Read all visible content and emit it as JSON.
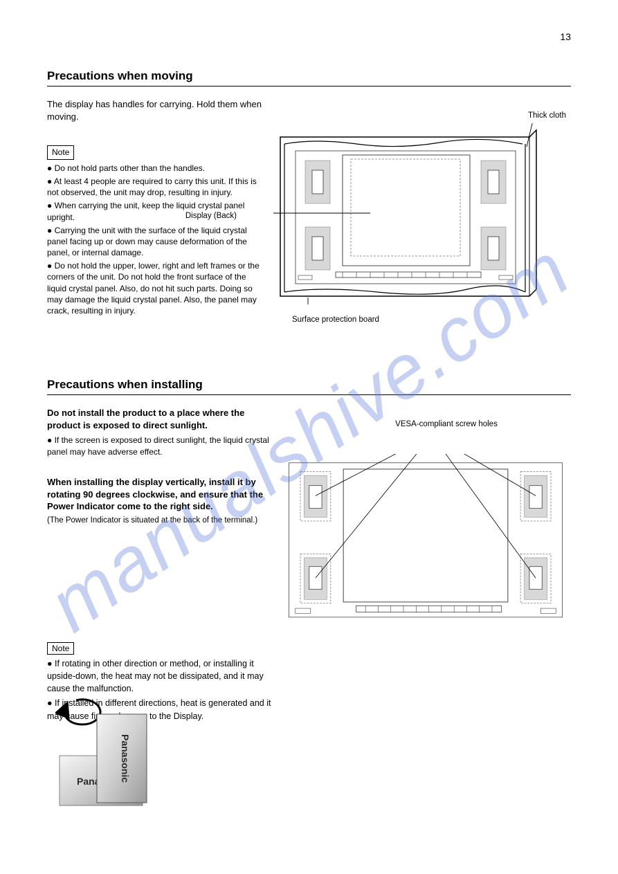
{
  "page_number": "13",
  "watermark": "manualshive.com",
  "section1_heading": "Precautions when moving",
  "section1_para1": "The display has handles for carrying. Hold them when moving.",
  "section1_note_heading": "Note",
  "section1_bullets": [
    "Do not hold parts other than the handles.",
    "At least 4 people are required to carry this unit. If this is not observed, the unit may drop, resulting in injury.",
    "When carrying the unit, keep the liquid crystal panel upright.",
    "Carrying the unit with the surface of the liquid crystal panel facing up or down may cause deformation of the panel, or internal damage.",
    "Do not hold the upper, lower, right and left frames or the corners of the unit. Do not hold the front surface of the liquid crystal panel. Also, do not hit such parts. Doing so may damage the liquid crystal panel. Also, the panel may crack, resulting in injury."
  ],
  "section1_label_cloth": "Thick cloth",
  "section1_label_display": "Display (Back)",
  "section1_label_protection": "Surface protection board",
  "figure1": {
    "type": "technical-diagram",
    "view": "back-of-display-on-protective-surface",
    "stroke_color": "#333333",
    "background_color": "#ffffff",
    "cloth_wave": true,
    "outer_board_w": 380,
    "outer_board_h": 248,
    "inner_display_w": 318,
    "inner_display_h": 192
  },
  "section2_heading": "Precautions when installing",
  "section2_para1": "Do not install the product to a place where the product is exposed to direct sunlight.",
  "section2_bullet1": "If the screen is exposed to direct sunlight, the liquid crystal panel may have adverse effect.",
  "section2_para2_bold": "When installing the display vertically, install it by rotating 90 degrees clockwise, and ensure that the Power Indicator come to the right side.",
  "section2_para2_sub": "(The Power Indicator is situated at the back of the terminal.)",
  "section2_label_vesa": "VESA-compliant screw holes",
  "figure2": {
    "type": "technical-diagram",
    "view": "back-of-display-vesa-callout",
    "stroke_color": "#333333",
    "holes": 4,
    "lead_lines": 4
  },
  "rotation_note_heading": "Note",
  "rotation_bullets": [
    "If rotating in other direction or method, or installing it upside-down, the heat may not be dissipated, and it may cause the malfunction.",
    "If installed in different directions, heat is generated and it may cause fire or damage to the Display."
  ],
  "rotation_figure": {
    "type": "infographic",
    "panels": 2,
    "arrow_direction": "clockwise",
    "panel_gradient_from": "#f5f5f5",
    "panel_gradient_to": "#9a9a9a",
    "brand_text": "Panasonic",
    "brand_color": "#2a2a2a",
    "brand_fontsize": 14
  }
}
